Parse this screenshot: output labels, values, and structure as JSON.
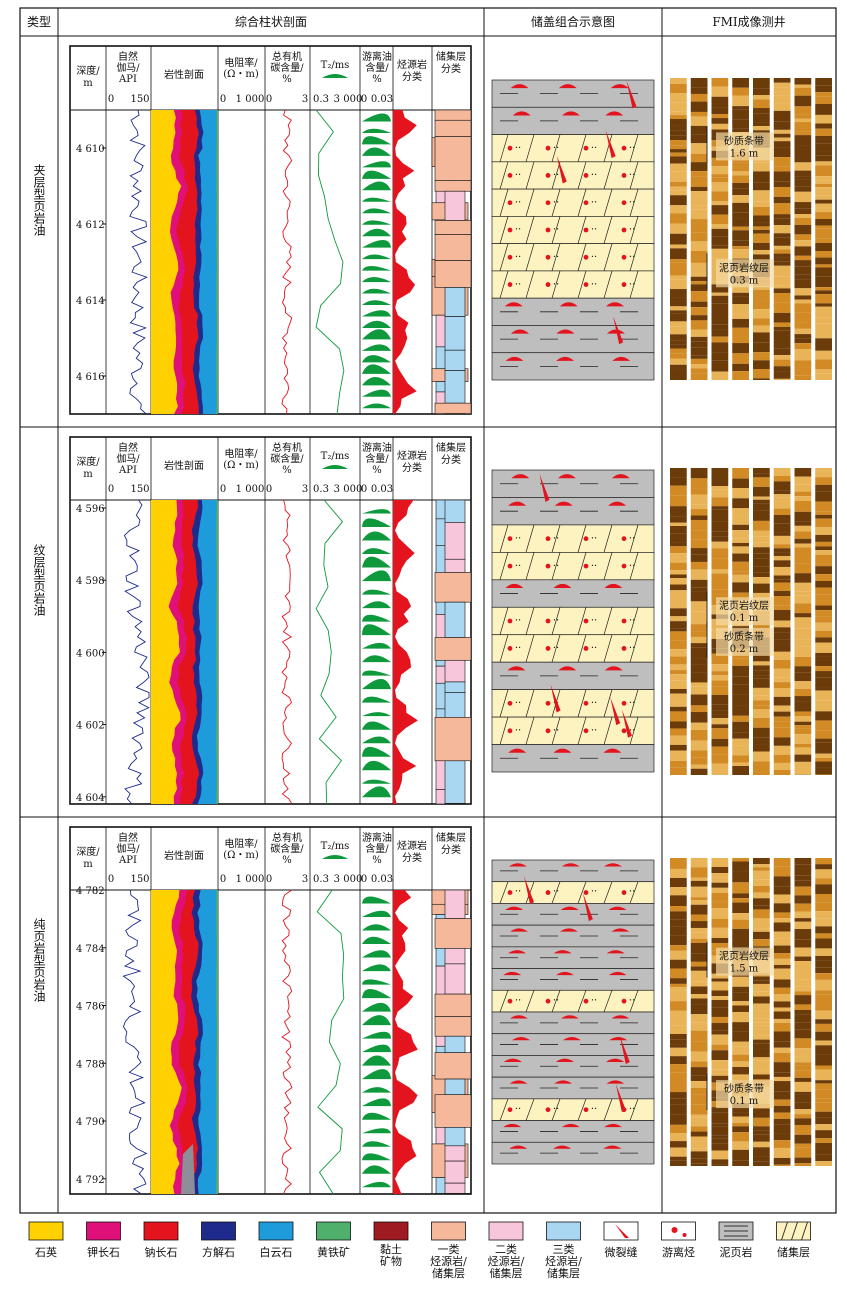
{
  "header": {
    "col_type": "类型",
    "col_profile": "综合柱状剖面",
    "col_schematic": "储盖组合示意图",
    "col_fmi": "FMI成像测井"
  },
  "track_headers": {
    "depth": [
      "深度/",
      "m"
    ],
    "gr": [
      "自然",
      "伽马/",
      "API"
    ],
    "gr_scale": [
      "0",
      "150"
    ],
    "litho": "岩性剖面",
    "res": [
      "电阻率/",
      "(Ω・m)"
    ],
    "res_scale": [
      "0",
      "1 000"
    ],
    "toc": [
      "总有机",
      "碳含量/",
      "%"
    ],
    "toc_scale": [
      "0",
      "3"
    ],
    "t2": "T₂/ms",
    "t2_scale": [
      "0.3",
      "3 000"
    ],
    "oil": [
      "游离油",
      "含量/",
      "%"
    ],
    "oil_scale": [
      "0",
      "0.03"
    ],
    "src": [
      "烃源岩",
      "分类"
    ],
    "res_cls": [
      "储集层",
      "分类"
    ]
  },
  "rows": [
    {
      "type_label": "夹层型页岩油",
      "depths": [
        "4 610",
        "4 612",
        "4 614",
        "4 616"
      ],
      "fmi_notes": [
        {
          "text": "砂质条带",
          "value": "1.6 m"
        },
        {
          "text": "泥页岩纹层",
          "value": "0.3 m"
        }
      ]
    },
    {
      "type_label": "纹层型页岩油",
      "depths": [
        "4 596",
        "4 598",
        "4 600",
        "4 602",
        "4 604"
      ],
      "fmi_notes": [
        {
          "text": "泥页岩纹层",
          "value": "0.1 m"
        },
        {
          "text": "砂质条带",
          "value": "0.2 m"
        }
      ]
    },
    {
      "type_label": "纯页岩型页岩油",
      "depths": [
        "4 782",
        "4 784",
        "4 786",
        "4 788",
        "4 790",
        "4 792"
      ],
      "fmi_notes": [
        {
          "text": "泥页岩纹层",
          "value": "1.5 m"
        },
        {
          "text": "砂质条带",
          "value": "0.1 m"
        }
      ]
    }
  ],
  "legend": [
    {
      "label": "石英",
      "color": "#FFD100"
    },
    {
      "label": "钾长石",
      "color": "#E0107A"
    },
    {
      "label": "钠长石",
      "color": "#E3141E"
    },
    {
      "label": "方解石",
      "color": "#1E2A8C"
    },
    {
      "label": "白云石",
      "color": "#1E9BDB"
    },
    {
      "label": "黄铁矿",
      "color": "#4FB06C"
    },
    {
      "label": "黏土矿物",
      "color": "#9E1B22"
    },
    {
      "label": "一类烃源岩/储集层",
      "color": "#F5B89A"
    },
    {
      "label": "二类烃源岩/储集层",
      "color": "#F7C6DA"
    },
    {
      "label": "三类烃源岩/储集层",
      "color": "#A9D6F0"
    },
    {
      "label": "微裂缝",
      "color": "#E3141E"
    },
    {
      "label": "游离烃",
      "color": "#E3141E"
    },
    {
      "label": "泥页岩",
      "color": "#BEBEBE"
    },
    {
      "label": "储集层",
      "color": "#FDF3C0"
    }
  ],
  "colors": {
    "green": "#0E9A3C",
    "red": "#E3141E",
    "curve_blue": "#1C2A8C",
    "fmi_dark": "#5A3308",
    "fmi_light": "#E6A53A"
  }
}
